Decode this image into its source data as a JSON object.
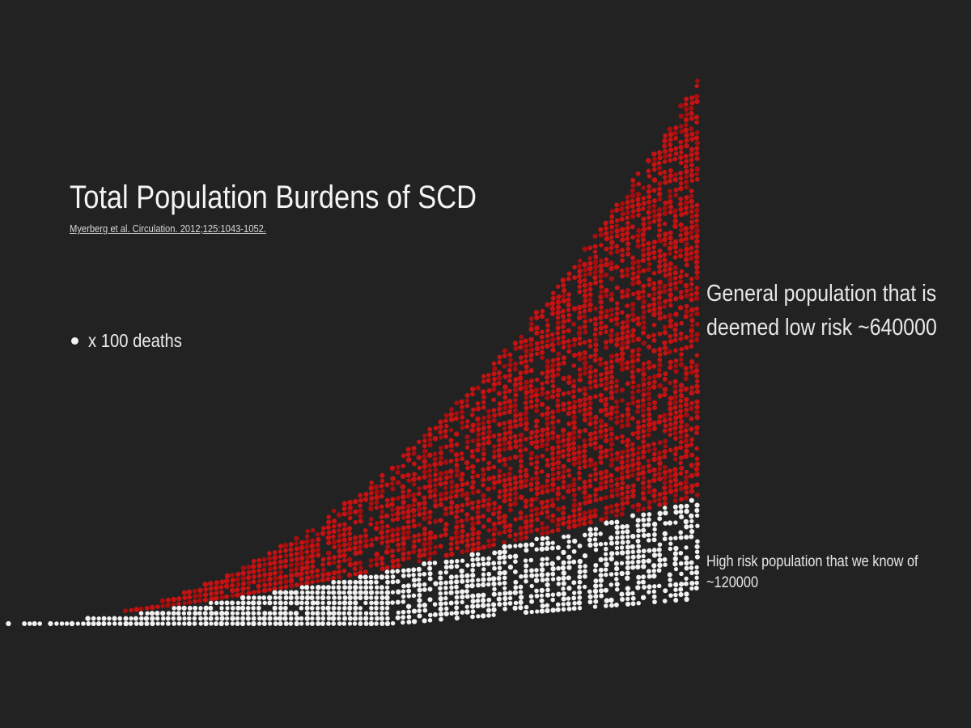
{
  "title": "Total Population Burdens of SCD",
  "citation": "Myerberg et al. Circulation. 2012;125:1043-1052.",
  "legend": {
    "label": "x 100 deaths"
  },
  "annotations": {
    "general_line1": "General population that is",
    "general_line2": "deemed low risk ~640000",
    "high_risk_line1": "High risk population that we know of",
    "high_risk_line2": "~120000"
  },
  "colors": {
    "background": "#222222",
    "general_population": "#c41212",
    "high_risk": "#f2f2f2"
  },
  "chart_data": {
    "type": "area",
    "title": "Total Population Burdens of SCD",
    "xlabel": "",
    "ylabel": "",
    "grid": false,
    "unit": "x 100 deaths",
    "series": [
      {
        "name": "General population that is deemed low risk",
        "total": 640000
      },
      {
        "name": "High risk population that we know of",
        "total": 120000
      }
    ]
  }
}
